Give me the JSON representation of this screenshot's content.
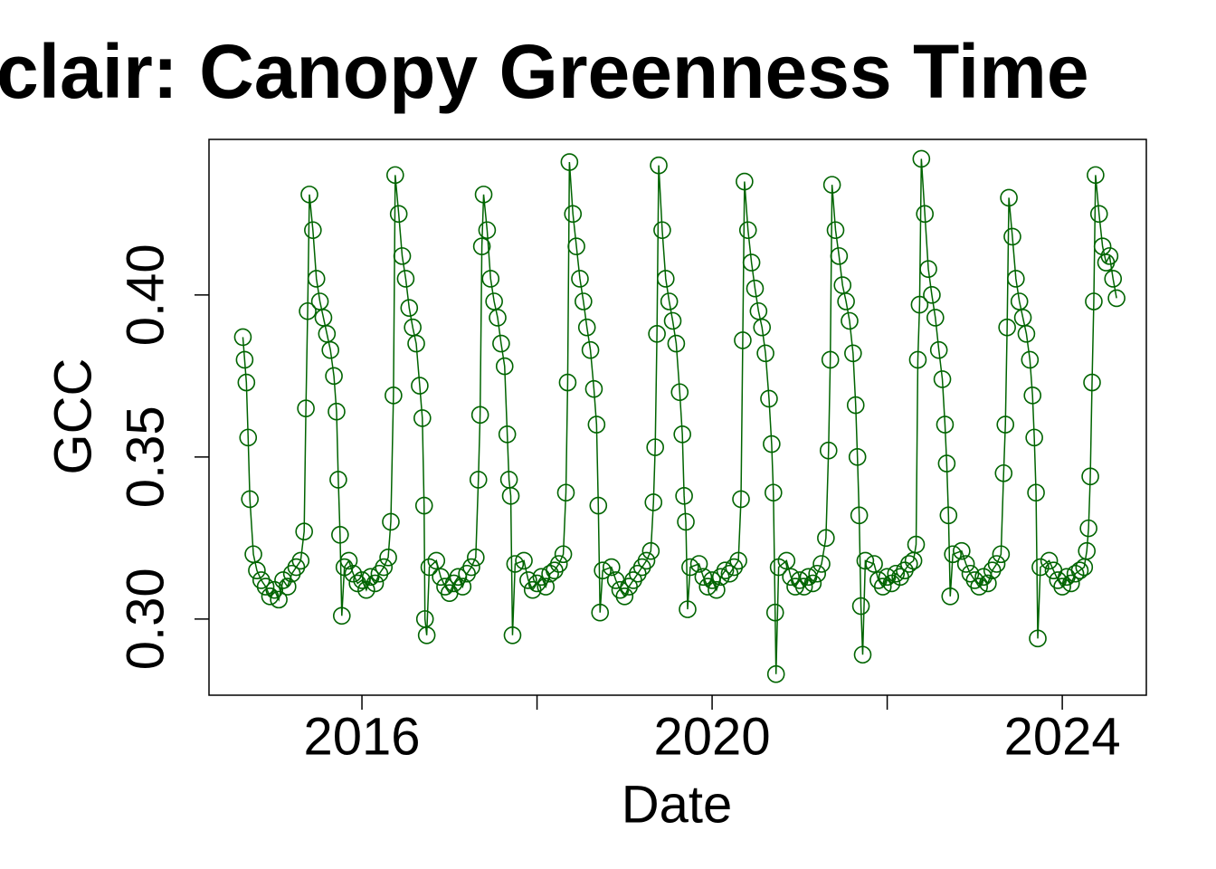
{
  "chart_data": {
    "type": "line",
    "title": "clair: Canopy Greenness Time",
    "x_label": "Date",
    "y_label": "GCC",
    "xlim": [
      2014.253,
      2024.96
    ],
    "ylim": [
      0.2765,
      0.448
    ],
    "xticks": [
      2016,
      {
        "value": 2018,
        "label": null
      },
      2020,
      {
        "value": 2022,
        "label": null
      },
      2024
    ],
    "yticks": [
      {
        "value": 0.3,
        "label": "0.30"
      },
      {
        "value": 0.35,
        "label": "0.35"
      },
      {
        "value": 0.4,
        "label": "0.40"
      }
    ],
    "grid": false,
    "x": [
      2014.64,
      2014.66,
      2014.68,
      2014.7,
      2014.72,
      2014.76,
      2014.8,
      2014.85,
      2014.9,
      2014.95,
      2015,
      2015.05,
      2015.1,
      2015.15,
      2015.2,
      2015.25,
      2015.3,
      2015.34,
      2015.36,
      2015.38,
      2015.4,
      2015.44,
      2015.48,
      2015.52,
      2015.56,
      2015.6,
      2015.64,
      2015.68,
      2015.71,
      2015.73,
      2015.75,
      2015.77,
      2015.8,
      2015.85,
      2015.9,
      2015.95,
      2016,
      2016.05,
      2016.1,
      2016.15,
      2016.2,
      2016.25,
      2016.3,
      2016.33,
      2016.36,
      2016.38,
      2016.42,
      2016.46,
      2016.5,
      2016.54,
      2016.58,
      2016.62,
      2016.66,
      2016.69,
      2016.71,
      2016.72,
      2016.74,
      2016.77,
      2016.85,
      2016.9,
      2016.95,
      2017,
      2017.05,
      2017.1,
      2017.15,
      2017.2,
      2017.25,
      2017.3,
      2017.33,
      2017.35,
      2017.37,
      2017.39,
      2017.43,
      2017.47,
      2017.51,
      2017.55,
      2017.59,
      2017.63,
      2017.66,
      2017.68,
      2017.7,
      2017.72,
      2017.75,
      2017.85,
      2017.9,
      2017.95,
      2018,
      2018.05,
      2018.1,
      2018.15,
      2018.2,
      2018.25,
      2018.3,
      2018.33,
      2018.35,
      2018.37,
      2018.41,
      2018.45,
      2018.49,
      2018.53,
      2018.57,
      2018.61,
      2018.65,
      2018.68,
      2018.7,
      2018.72,
      2018.75,
      2018.85,
      2018.9,
      2018.95,
      2019,
      2019.05,
      2019.1,
      2019.15,
      2019.2,
      2019.25,
      2019.3,
      2019.33,
      2019.35,
      2019.37,
      2019.39,
      2019.43,
      2019.47,
      2019.51,
      2019.55,
      2019.59,
      2019.63,
      2019.66,
      2019.68,
      2019.7,
      2019.72,
      2019.75,
      2019.85,
      2019.9,
      2019.95,
      2020,
      2020.05,
      2020.1,
      2020.15,
      2020.2,
      2020.25,
      2020.3,
      2020.33,
      2020.35,
      2020.37,
      2020.41,
      2020.45,
      2020.49,
      2020.53,
      2020.57,
      2020.61,
      2020.65,
      2020.68,
      2020.7,
      2020.72,
      2020.73,
      2020.76,
      2020.85,
      2020.9,
      2020.95,
      2021,
      2021.05,
      2021.1,
      2021.15,
      2021.2,
      2021.25,
      2021.3,
      2021.33,
      2021.35,
      2021.37,
      2021.41,
      2021.45,
      2021.49,
      2021.53,
      2021.57,
      2021.61,
      2021.64,
      2021.66,
      2021.68,
      2021.7,
      2021.72,
      2021.75,
      2021.85,
      2021.9,
      2021.95,
      2022,
      2022.05,
      2022.1,
      2022.15,
      2022.2,
      2022.25,
      2022.3,
      2022.33,
      2022.35,
      2022.37,
      2022.39,
      2022.43,
      2022.47,
      2022.51,
      2022.55,
      2022.59,
      2022.63,
      2022.66,
      2022.68,
      2022.7,
      2022.72,
      2022.75,
      2022.85,
      2022.9,
      2022.95,
      2023,
      2023.05,
      2023.1,
      2023.15,
      2023.2,
      2023.25,
      2023.3,
      2023.33,
      2023.35,
      2023.37,
      2023.39,
      2023.43,
      2023.47,
      2023.51,
      2023.55,
      2023.59,
      2023.63,
      2023.66,
      2023.68,
      2023.7,
      2023.72,
      2023.75,
      2023.85,
      2023.9,
      2023.95,
      2024,
      2024.05,
      2024.1,
      2024.15,
      2024.2,
      2024.25,
      2024.28,
      2024.3,
      2024.32,
      2024.34,
      2024.36,
      2024.38,
      2024.42,
      2024.46,
      2024.5,
      2024.54,
      2024.58,
      2024.62
    ],
    "series": [
      {
        "color": "#006400",
        "values": [
          0.387,
          0.38,
          0.373,
          0.356,
          0.337,
          0.32,
          0.315,
          0.312,
          0.31,
          0.307,
          0.309,
          0.306,
          0.312,
          0.31,
          0.314,
          0.316,
          0.318,
          0.327,
          0.365,
          0.395,
          0.431,
          0.42,
          0.405,
          0.398,
          0.393,
          0.388,
          0.383,
          0.375,
          0.364,
          0.343,
          0.326,
          0.301,
          0.316,
          0.318,
          0.314,
          0.311,
          0.312,
          0.309,
          0.313,
          0.311,
          0.314,
          0.316,
          0.319,
          0.33,
          0.369,
          0.437,
          0.425,
          0.412,
          0.405,
          0.396,
          0.39,
          0.385,
          0.372,
          0.362,
          0.335,
          0.3,
          0.295,
          0.316,
          0.318,
          0.313,
          0.31,
          0.308,
          0.311,
          0.313,
          0.31,
          0.314,
          0.316,
          0.319,
          0.343,
          0.363,
          0.415,
          0.431,
          0.42,
          0.405,
          0.398,
          0.393,
          0.385,
          0.378,
          0.357,
          0.343,
          0.338,
          0.295,
          0.317,
          0.318,
          0.312,
          0.309,
          0.311,
          0.313,
          0.31,
          0.314,
          0.315,
          0.317,
          0.32,
          0.339,
          0.373,
          0.441,
          0.425,
          0.415,
          0.405,
          0.398,
          0.39,
          0.383,
          0.371,
          0.36,
          0.335,
          0.302,
          0.315,
          0.316,
          0.312,
          0.309,
          0.307,
          0.31,
          0.312,
          0.314,
          0.316,
          0.318,
          0.321,
          0.336,
          0.353,
          0.388,
          0.44,
          0.42,
          0.405,
          0.398,
          0.392,
          0.385,
          0.37,
          0.357,
          0.338,
          0.33,
          0.303,
          0.316,
          0.317,
          0.313,
          0.31,
          0.312,
          0.309,
          0.313,
          0.315,
          0.314,
          0.316,
          0.318,
          0.337,
          0.386,
          0.435,
          0.42,
          0.41,
          0.402,
          0.395,
          0.39,
          0.382,
          0.368,
          0.354,
          0.339,
          0.302,
          0.283,
          0.316,
          0.318,
          0.313,
          0.31,
          0.312,
          0.31,
          0.313,
          0.311,
          0.314,
          0.317,
          0.325,
          0.352,
          0.38,
          0.434,
          0.42,
          0.412,
          0.403,
          0.398,
          0.392,
          0.382,
          0.366,
          0.35,
          0.332,
          0.304,
          0.289,
          0.318,
          0.317,
          0.312,
          0.31,
          0.313,
          0.311,
          0.314,
          0.313,
          0.315,
          0.317,
          0.318,
          0.323,
          0.38,
          0.397,
          0.442,
          0.425,
          0.408,
          0.4,
          0.393,
          0.383,
          0.374,
          0.36,
          0.348,
          0.332,
          0.307,
          0.32,
          0.321,
          0.317,
          0.314,
          0.312,
          0.31,
          0.313,
          0.311,
          0.315,
          0.317,
          0.32,
          0.345,
          0.36,
          0.39,
          0.43,
          0.418,
          0.405,
          0.398,
          0.393,
          0.388,
          0.38,
          0.369,
          0.356,
          0.339,
          0.294,
          0.316,
          0.318,
          0.315,
          0.312,
          0.31,
          0.313,
          0.311,
          0.314,
          0.315,
          0.316,
          0.321,
          0.328,
          0.344,
          0.373,
          0.398,
          0.437,
          0.425,
          0.415,
          0.41,
          0.412,
          0.405,
          0.399
        ]
      }
    ]
  }
}
